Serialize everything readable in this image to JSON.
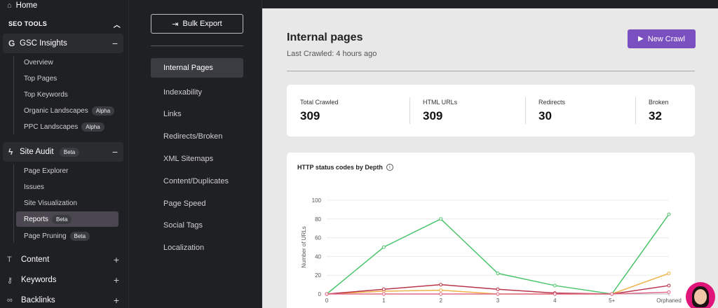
{
  "sidebar": {
    "home_label": "Home",
    "section_title": "SEO TOOLS",
    "gsc": {
      "label": "GSC Insights",
      "items": [
        {
          "label": "Overview"
        },
        {
          "label": "Top Pages"
        },
        {
          "label": "Top Keywords"
        },
        {
          "label": "Organic Landscapes",
          "badge": "Alpha"
        },
        {
          "label": "PPC Landscapes",
          "badge": "Alpha"
        }
      ]
    },
    "site_audit": {
      "label": "Site Audit",
      "badge": "Beta",
      "items": [
        {
          "label": "Page Explorer"
        },
        {
          "label": "Issues"
        },
        {
          "label": "Site Visualization"
        },
        {
          "label": "Reports",
          "badge": "Beta",
          "active": true
        },
        {
          "label": "Page Pruning",
          "badge": "Beta"
        }
      ]
    },
    "main_items": [
      {
        "label": "Content"
      },
      {
        "label": "Keywords"
      },
      {
        "label": "Backlinks"
      }
    ]
  },
  "subnav": {
    "bulk_export_label": "Bulk Export",
    "items": [
      {
        "label": "Internal Pages",
        "active": true
      },
      {
        "label": "Indexability"
      },
      {
        "label": "Links"
      },
      {
        "label": "Redirects/Broken"
      },
      {
        "label": "XML Sitemaps"
      },
      {
        "label": "Content/Duplicates"
      },
      {
        "label": "Page Speed"
      },
      {
        "label": "Social Tags"
      },
      {
        "label": "Localization"
      }
    ]
  },
  "main": {
    "title": "Internal pages",
    "last_crawled": "Last Crawled: 4 hours ago",
    "new_crawl_label": "New Crawl",
    "stats": [
      {
        "label": "Total Crawled",
        "value": "309"
      },
      {
        "label": "HTML URLs",
        "value": "309"
      },
      {
        "label": "Redirects",
        "value": "30"
      },
      {
        "label": "Broken",
        "value": "32"
      }
    ],
    "chart_title": "HTTP status codes by Depth"
  },
  "colors": {
    "accent": "#7a4fc0",
    "green": "#4cc46b",
    "orange": "#f0b24a",
    "red": "#b8344a",
    "pink": "#e06a8a"
  },
  "chart_data": {
    "type": "line",
    "title": "HTTP status codes by Depth",
    "ylabel": "Number of URLs",
    "xlabel": "",
    "categories": [
      "0",
      "1",
      "2",
      "3",
      "4",
      "5+",
      "Orphaned"
    ],
    "ylim": [
      0,
      100
    ],
    "yticks": [
      0,
      20,
      40,
      60,
      80,
      100
    ],
    "series": [
      {
        "color": "#4cc46b",
        "values": [
          0,
          50,
          80,
          22,
          9,
          0,
          85
        ]
      },
      {
        "color": "#f0b24a",
        "values": [
          0,
          3,
          4,
          0,
          0,
          0,
          22
        ]
      },
      {
        "color": "#b8344a",
        "values": [
          0,
          5,
          10,
          5,
          1,
          0,
          9
        ]
      },
      {
        "color": "#e06a8a",
        "values": [
          0,
          0,
          0,
          0,
          0,
          0,
          2
        ]
      }
    ]
  }
}
